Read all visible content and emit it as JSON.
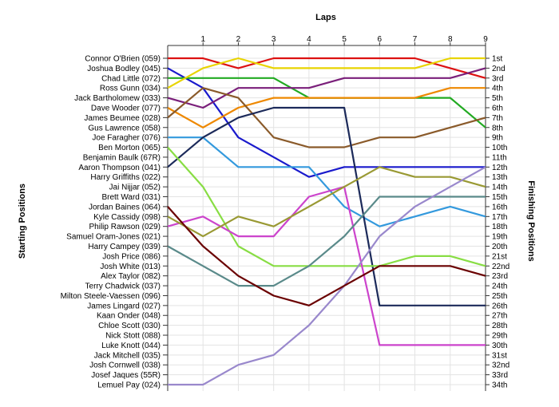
{
  "chart_data": {
    "type": "line",
    "title": "",
    "xlabel": "Laps",
    "ylabel_left": "Starting Positions",
    "ylabel_right": "Finishing Positions",
    "x": [
      0,
      1,
      2,
      3,
      4,
      5,
      6,
      7,
      8,
      9
    ],
    "x_tick_labels": [
      "1",
      "2",
      "3",
      "4",
      "5",
      "6",
      "7",
      "8",
      "9"
    ],
    "xlim": [
      0,
      9
    ],
    "ylim": [
      1,
      34
    ],
    "y_reversed": true,
    "grid": "horizontal",
    "starting_labels": [
      "Connor O'Brien (059)",
      "Joshua Bodley (045)",
      "Chad Little (072)",
      "Ross Gunn (034)",
      "Jack Bartholomew (033)",
      "Dave Wooder (077)",
      "James Beumee (028)",
      "Gus Lawrence (058)",
      "Joe Faragher (076)",
      "Ben Morton (065)",
      "Benjamin Baulk (67R)",
      "Aaron Thompson (041)",
      "Harry Griffiths (022)",
      "Jai Nijjar (052)",
      "Brett Ward (031)",
      "Jordan Baines (064)",
      "Kyle Cassidy (098)",
      "Philip Rawson (029)",
      "Samuel Oram-Jones (021)",
      "Harry Campey (039)",
      "Josh Price (086)",
      "Josh White (013)",
      "Alex Taylor (082)",
      "Terry Chadwick (037)",
      "Milton Steele-Vaessen (096)",
      "James Lingard (027)",
      "Kaan Onder (048)",
      "Chloe Scott (030)",
      "Nick Stott (088)",
      "Luke Knott (044)",
      "Jack Mitchell (035)",
      "Josh Cornwell (038)",
      "Josef Jaques (55R)",
      "Lemuel Pay (024)"
    ],
    "finishing_labels": [
      "1st",
      "2nd",
      "3rd",
      "4th",
      "5th",
      "6th",
      "7th",
      "8th",
      "9th",
      "10th",
      "11th",
      "12th",
      "13th",
      "14th",
      "15th",
      "16th",
      "17th",
      "18th",
      "19th",
      "20th",
      "21st",
      "22nd",
      "23rd",
      "24th",
      "25th",
      "26th",
      "27th",
      "28th",
      "29th",
      "30th",
      "31st",
      "32nd",
      "33rd",
      "34th"
    ],
    "series": [
      {
        "color": "#dd1111",
        "positions": [
          1,
          1,
          2,
          1,
          1,
          1,
          1,
          1,
          2,
          3
        ]
      },
      {
        "color": "#1a1acc",
        "positions": [
          2,
          4,
          9,
          11,
          13,
          12,
          12,
          12,
          12,
          12
        ]
      },
      {
        "color": "#22aa22",
        "positions": [
          3,
          3,
          3,
          3,
          5,
          5,
          5,
          5,
          5,
          8
        ]
      },
      {
        "color": "#e8d400",
        "positions": [
          4,
          2,
          1,
          2,
          2,
          2,
          2,
          2,
          1,
          1
        ]
      },
      {
        "color": "#7a1f7a",
        "positions": [
          5,
          6,
          4,
          4,
          4,
          3,
          3,
          3,
          3,
          2
        ]
      },
      {
        "color": "#ee8800",
        "positions": [
          6,
          8,
          6,
          5,
          5,
          5,
          5,
          5,
          4,
          4
        ]
      },
      {
        "color": "#8a5a2a",
        "positions": [
          7,
          4,
          5,
          9,
          10,
          10,
          9,
          9,
          8,
          7
        ]
      },
      {
        "color": "#3399dd",
        "positions": [
          9,
          9,
          12,
          12,
          12,
          16,
          18,
          17,
          16,
          17
        ]
      },
      {
        "color": "#1c2a5a",
        "positions": [
          12,
          9,
          7,
          6,
          6,
          6,
          26,
          26,
          26,
          26
        ]
      },
      {
        "color": "#88dd44",
        "positions": [
          10,
          14,
          20,
          22,
          22,
          22,
          22,
          21,
          21,
          22
        ]
      },
      {
        "color": "#cc44cc",
        "positions": [
          18,
          17,
          19,
          19,
          15,
          14,
          30,
          30,
          30,
          30
        ]
      },
      {
        "color": "#999933",
        "positions": [
          17,
          19,
          17,
          18,
          16,
          14,
          12,
          13,
          13,
          14
        ]
      },
      {
        "color": "#5a8a8a",
        "positions": [
          20,
          22,
          24,
          24,
          22,
          19,
          15,
          15,
          15,
          15
        ]
      },
      {
        "color": "#9988cc",
        "positions": [
          34,
          34,
          32,
          31,
          28,
          24,
          19,
          16,
          14,
          12
        ]
      },
      {
        "color": "#6a0000",
        "positions": [
          16,
          20,
          23,
          25,
          26,
          24,
          22,
          22,
          22,
          23
        ]
      }
    ]
  }
}
